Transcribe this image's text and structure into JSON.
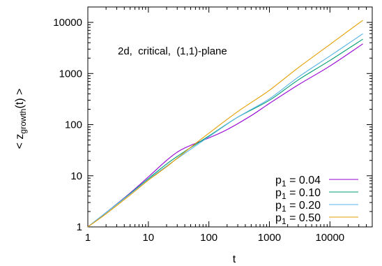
{
  "chart_data": {
    "type": "line",
    "annotation": "2d,  critical,  (1,1)-plane",
    "xlabel": "t",
    "ylabel_prefix": "< z",
    "ylabel_sub": "growth",
    "ylabel_suffix": "(t) >",
    "x_scale": "log",
    "y_scale": "log",
    "xlim": [
      1,
      50000
    ],
    "ylim": [
      1,
      20000
    ],
    "grid": false,
    "legend_position": "bottom-right",
    "x_ticks": [
      {
        "value": 1,
        "label": "1"
      },
      {
        "value": 10,
        "label": "10"
      },
      {
        "value": 100,
        "label": "100"
      },
      {
        "value": 1000,
        "label": "1000"
      },
      {
        "value": 10000,
        "label": "10000"
      }
    ],
    "y_ticks": [
      {
        "value": 1,
        "label": "1"
      },
      {
        "value": 10,
        "label": "10"
      },
      {
        "value": 100,
        "label": "100"
      },
      {
        "value": 1000,
        "label": "1000"
      },
      {
        "value": 10000,
        "label": "10000"
      }
    ],
    "series": [
      {
        "legend_main": "p",
        "legend_sub": "1",
        "legend_rest": " = 0.04",
        "color": "#9400d3",
        "x": [
          1,
          2,
          5,
          10,
          20,
          30,
          40,
          60,
          100,
          200,
          500,
          1000,
          3000,
          10000,
          35000
        ],
        "y": [
          1,
          1.9,
          4.6,
          9.5,
          20,
          29,
          35,
          43,
          55,
          80,
          150,
          260,
          600,
          1400,
          3800
        ]
      },
      {
        "legend_main": "p",
        "legend_sub": "1",
        "legend_rest": " = 0.10",
        "color": "#009e73",
        "x": [
          1,
          2,
          5,
          10,
          20,
          40,
          100,
          300,
          1000,
          3000,
          10000,
          35000
        ],
        "y": [
          1,
          1.9,
          4.5,
          8.8,
          17,
          30,
          60,
          140,
          300,
          750,
          1800,
          4700
        ]
      },
      {
        "legend_main": "p",
        "legend_sub": "1",
        "legend_rest": " = 0.20",
        "color": "#56b4e9",
        "x": [
          1,
          2,
          5,
          10,
          20,
          50,
          100,
          300,
          1000,
          3000,
          10000,
          35000
        ],
        "y": [
          1,
          1.9,
          4.4,
          8.5,
          15.5,
          33,
          58,
          140,
          320,
          850,
          2200,
          6000
        ]
      },
      {
        "legend_main": "p",
        "legend_sub": "1",
        "legend_rest": " = 0.50",
        "color": "#e69f00",
        "x": [
          1,
          2,
          5,
          10,
          20,
          50,
          100,
          300,
          1000,
          3000,
          10000,
          35000
        ],
        "y": [
          1,
          1.8,
          4.2,
          8.2,
          15,
          36,
          68,
          180,
          470,
          1300,
          3700,
          11000
        ]
      }
    ]
  }
}
